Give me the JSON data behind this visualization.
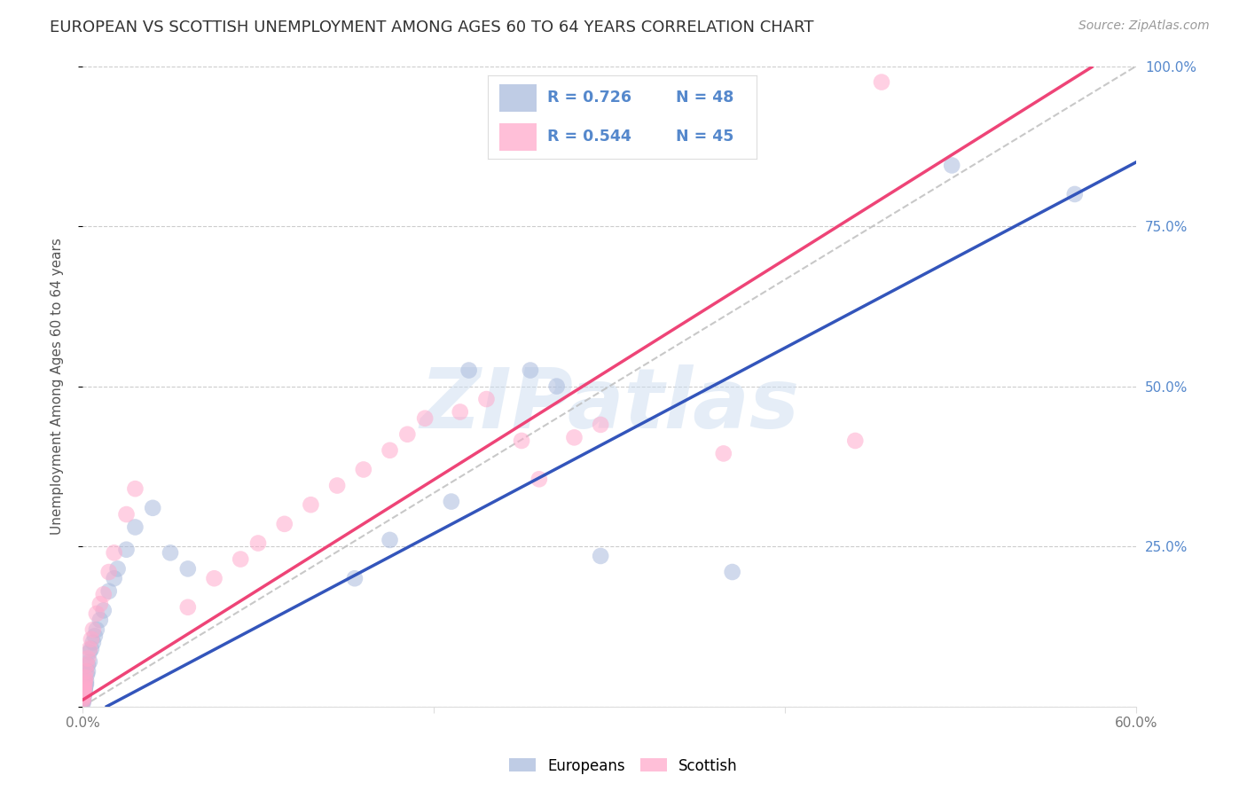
{
  "title": "EUROPEAN VS SCOTTISH UNEMPLOYMENT AMONG AGES 60 TO 64 YEARS CORRELATION CHART",
  "source": "Source: ZipAtlas.com",
  "ylabel": "Unemployment Among Ages 60 to 64 years",
  "xlim": [
    0.0,
    0.6
  ],
  "ylim": [
    0.0,
    1.0
  ],
  "r_european": 0.726,
  "n_european": 48,
  "r_scottish": 0.544,
  "n_scottish": 45,
  "blue_scatter_color": "#AABBDD",
  "pink_scatter_color": "#FFAACC",
  "blue_line_color": "#3355BB",
  "pink_line_color": "#EE4477",
  "watermark_color": "#CCDDF0",
  "axis_text_color": "#5588CC",
  "title_color": "#333333",
  "source_color": "#999999",
  "grid_color": "#CCCCCC",
  "eu_intercept": -0.02,
  "eu_slope": 1.45,
  "sc_intercept": 0.01,
  "sc_slope": 1.72,
  "europeans_x": [
    0.0002,
    0.0002,
    0.0003,
    0.0003,
    0.0004,
    0.0004,
    0.0005,
    0.0005,
    0.0006,
    0.0007,
    0.0008,
    0.0009,
    0.001,
    0.0012,
    0.0013,
    0.0015,
    0.0017,
    0.002,
    0.002,
    0.0025,
    0.003,
    0.003,
    0.004,
    0.004,
    0.005,
    0.006,
    0.007,
    0.008,
    0.01,
    0.012,
    0.015,
    0.018,
    0.02,
    0.025,
    0.03,
    0.04,
    0.05,
    0.06,
    0.155,
    0.175,
    0.21,
    0.22,
    0.255,
    0.27,
    0.295,
    0.37,
    0.495,
    0.565
  ],
  "europeans_y": [
    0.005,
    0.01,
    0.008,
    0.012,
    0.01,
    0.015,
    0.012,
    0.018,
    0.015,
    0.018,
    0.02,
    0.022,
    0.02,
    0.025,
    0.025,
    0.03,
    0.035,
    0.035,
    0.04,
    0.05,
    0.055,
    0.065,
    0.07,
    0.085,
    0.09,
    0.1,
    0.11,
    0.12,
    0.135,
    0.15,
    0.18,
    0.2,
    0.215,
    0.245,
    0.28,
    0.31,
    0.24,
    0.215,
    0.2,
    0.26,
    0.32,
    0.525,
    0.525,
    0.5,
    0.235,
    0.21,
    0.845,
    0.8
  ],
  "scottish_x": [
    0.0002,
    0.0003,
    0.0004,
    0.0005,
    0.0006,
    0.0007,
    0.0008,
    0.0009,
    0.001,
    0.0012,
    0.0014,
    0.0016,
    0.002,
    0.0025,
    0.003,
    0.004,
    0.005,
    0.006,
    0.008,
    0.01,
    0.012,
    0.015,
    0.018,
    0.025,
    0.03,
    0.06,
    0.075,
    0.09,
    0.1,
    0.115,
    0.13,
    0.145,
    0.16,
    0.175,
    0.185,
    0.195,
    0.215,
    0.23,
    0.25,
    0.26,
    0.28,
    0.295,
    0.365,
    0.44,
    0.455
  ],
  "scottish_y": [
    0.008,
    0.012,
    0.015,
    0.018,
    0.02,
    0.022,
    0.025,
    0.028,
    0.03,
    0.035,
    0.04,
    0.045,
    0.055,
    0.065,
    0.075,
    0.09,
    0.105,
    0.12,
    0.145,
    0.16,
    0.175,
    0.21,
    0.24,
    0.3,
    0.34,
    0.155,
    0.2,
    0.23,
    0.255,
    0.285,
    0.315,
    0.345,
    0.37,
    0.4,
    0.425,
    0.45,
    0.46,
    0.48,
    0.415,
    0.355,
    0.42,
    0.44,
    0.395,
    0.415,
    0.975
  ]
}
